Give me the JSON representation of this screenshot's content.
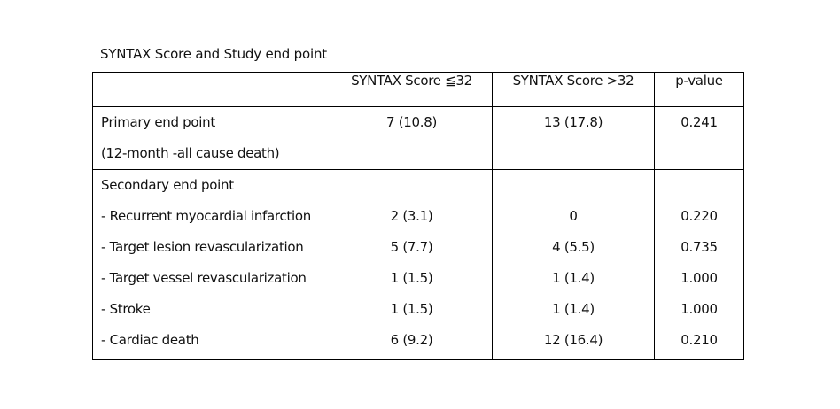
{
  "caption": "SYNTAX Score and Study end point",
  "table": {
    "headers": [
      "",
      "SYNTAX Score ≦32",
      "SYNTAX Score >32",
      "p-value"
    ],
    "primary": {
      "labels": [
        "Primary end point",
        "(12-month -all cause death)"
      ],
      "low": "7 (10.8)",
      "high": "13 (17.8)",
      "p": "0.241"
    },
    "secondary": {
      "title": "Secondary end point",
      "rows": [
        {
          "label": "- Recurrent myocardial infarction",
          "low": "2 (3.1)",
          "high": "0",
          "p": "0.220"
        },
        {
          "label": "- Target lesion revascularization",
          "low": "5 (7.7)",
          "high": "4 (5.5)",
          "p": "0.735"
        },
        {
          "label": "- Target vessel revascularization",
          "low": "1 (1.5)",
          "high": "1 (1.4)",
          "p": "1.000"
        },
        {
          "label": "- Stroke",
          "low": "1 (1.5)",
          "high": "1 (1.4)",
          "p": "1.000"
        },
        {
          "label": "- Cardiac death",
          "low": "6 (9.2)",
          "high": "12 (16.4)",
          "p": "0.210"
        }
      ]
    }
  }
}
